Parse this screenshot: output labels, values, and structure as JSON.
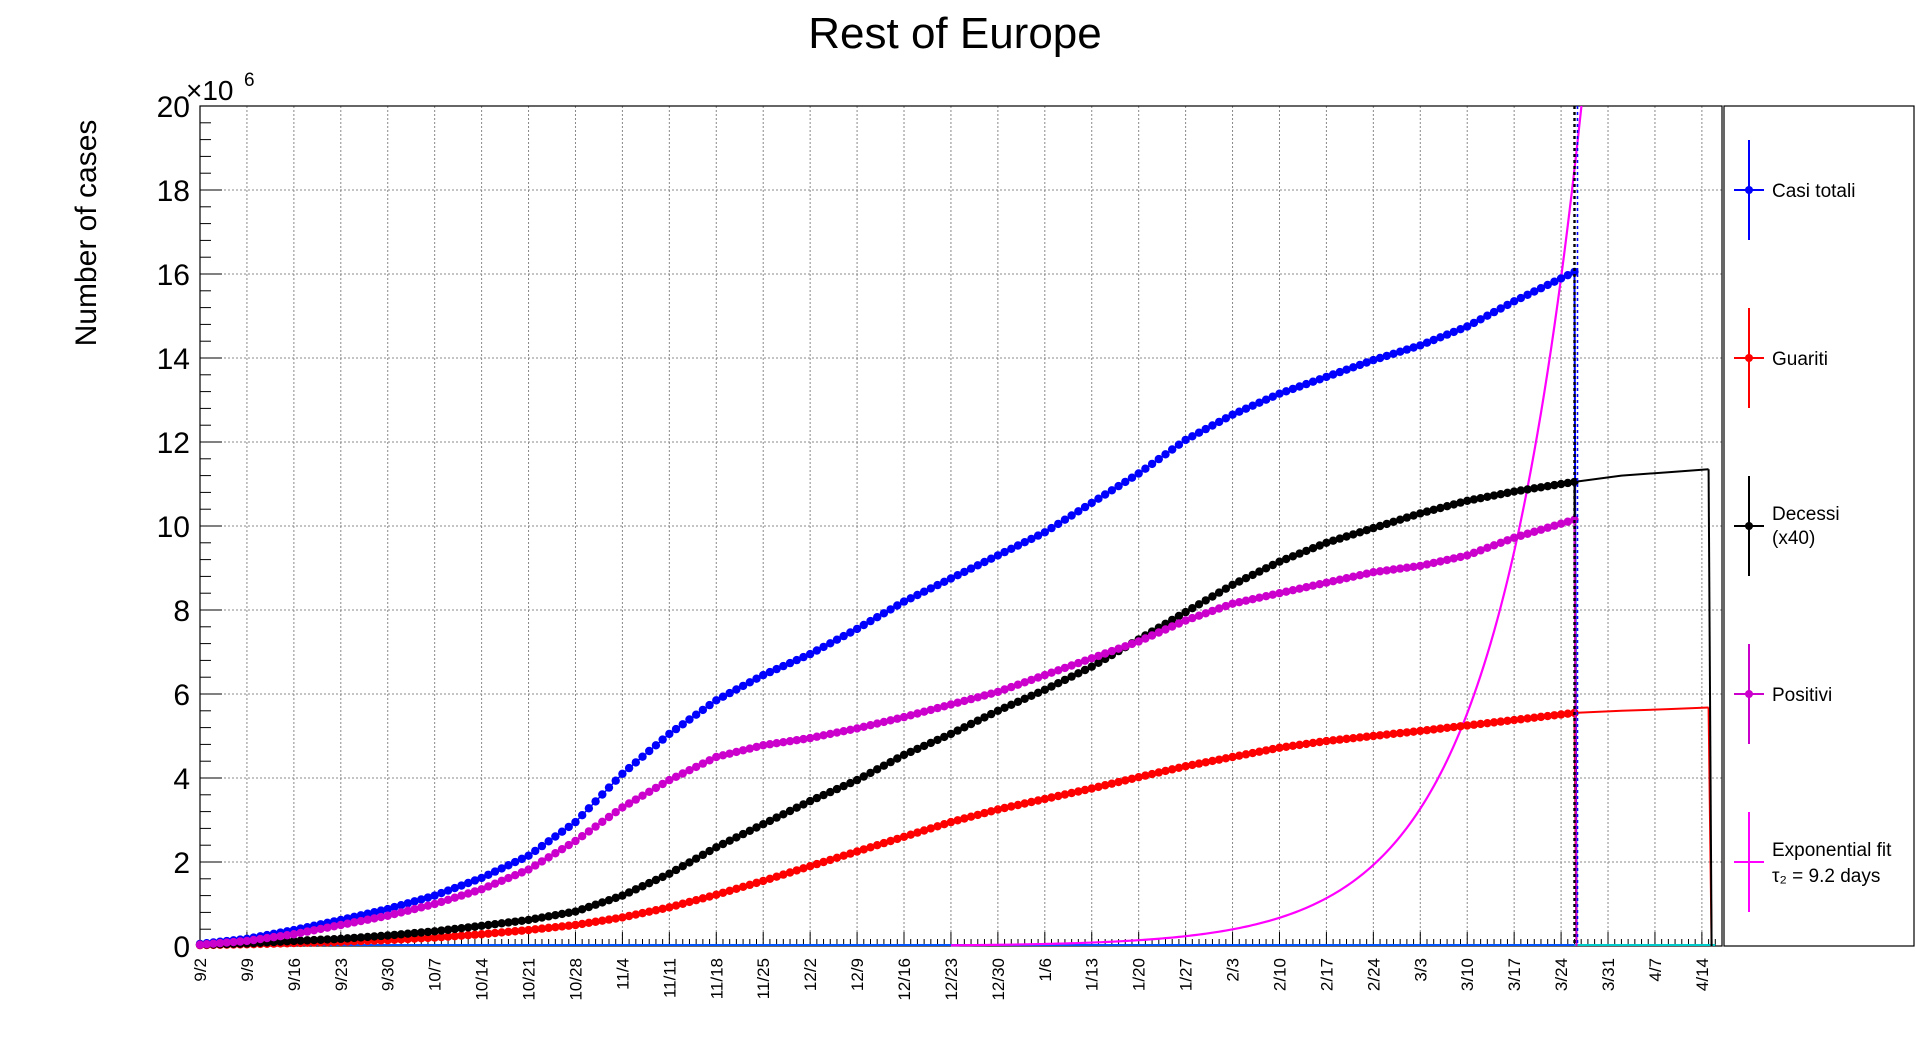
{
  "chart_data": {
    "type": "line",
    "title": "Rest of Europe",
    "ylabel": "Number of cases",
    "xlabel": "",
    "y_multiplier": "×10",
    "y_multiplier_exp": "6",
    "ylim": [
      0,
      20
    ],
    "yticks": [
      "0",
      "2",
      "4",
      "6",
      "8",
      "10",
      "12",
      "14",
      "16",
      "18",
      "20"
    ],
    "grid": true,
    "legend_position": "right",
    "x_tick_labels": [
      "9/2",
      "9/9",
      "9/16",
      "9/23",
      "9/30",
      "10/7",
      "10/14",
      "10/21",
      "10/28",
      "11/4",
      "11/11",
      "11/18",
      "11/25",
      "12/2",
      "12/9",
      "12/16",
      "12/23",
      "12/30",
      "1/6",
      "1/13",
      "1/20",
      "1/27",
      "2/3",
      "2/10",
      "2/17",
      "2/24",
      "3/3",
      "3/10",
      "3/17",
      "3/24",
      "3/31",
      "4/7",
      "4/14"
    ],
    "x_range_days": [
      0,
      227
    ],
    "last_data_day": 205,
    "forecast_end_day": 226,
    "vertical_marker_day": 205,
    "series": [
      {
        "name": "Casi totali",
        "color": "#0000ff",
        "points": [
          [
            0,
            0.05
          ],
          [
            7,
            0.17
          ],
          [
            14,
            0.38
          ],
          [
            21,
            0.62
          ],
          [
            28,
            0.88
          ],
          [
            35,
            1.2
          ],
          [
            42,
            1.62
          ],
          [
            49,
            2.15
          ],
          [
            56,
            2.95
          ],
          [
            63,
            4.1
          ],
          [
            70,
            5.05
          ],
          [
            77,
            5.85
          ],
          [
            84,
            6.45
          ],
          [
            91,
            6.95
          ],
          [
            98,
            7.55
          ],
          [
            105,
            8.2
          ],
          [
            112,
            8.75
          ],
          [
            119,
            9.3
          ],
          [
            126,
            9.85
          ],
          [
            133,
            10.55
          ],
          [
            140,
            11.25
          ],
          [
            147,
            12.05
          ],
          [
            154,
            12.65
          ],
          [
            161,
            13.15
          ],
          [
            168,
            13.55
          ],
          [
            175,
            13.95
          ],
          [
            182,
            14.3
          ],
          [
            189,
            14.75
          ],
          [
            196,
            15.35
          ],
          [
            205,
            16.05
          ]
        ]
      },
      {
        "name": "Guariti",
        "color": "#ff0000",
        "points": [
          [
            0,
            0.02
          ],
          [
            7,
            0.04
          ],
          [
            14,
            0.07
          ],
          [
            21,
            0.1
          ],
          [
            28,
            0.14
          ],
          [
            35,
            0.2
          ],
          [
            42,
            0.28
          ],
          [
            49,
            0.38
          ],
          [
            56,
            0.5
          ],
          [
            63,
            0.68
          ],
          [
            70,
            0.92
          ],
          [
            77,
            1.22
          ],
          [
            84,
            1.55
          ],
          [
            91,
            1.9
          ],
          [
            98,
            2.25
          ],
          [
            105,
            2.6
          ],
          [
            112,
            2.95
          ],
          [
            119,
            3.25
          ],
          [
            126,
            3.5
          ],
          [
            133,
            3.75
          ],
          [
            140,
            4.02
          ],
          [
            147,
            4.28
          ],
          [
            154,
            4.5
          ],
          [
            161,
            4.72
          ],
          [
            168,
            4.88
          ],
          [
            175,
            5.0
          ],
          [
            182,
            5.12
          ],
          [
            189,
            5.25
          ],
          [
            196,
            5.38
          ],
          [
            205,
            5.55
          ]
        ],
        "forecast": [
          [
            205,
            5.55
          ],
          [
            212,
            5.6
          ],
          [
            219,
            5.64
          ],
          [
            225,
            5.68
          ]
        ]
      },
      {
        "name": "Decessi (x40)",
        "color": "#000000",
        "points": [
          [
            0,
            0.03
          ],
          [
            7,
            0.06
          ],
          [
            14,
            0.12
          ],
          [
            21,
            0.17
          ],
          [
            28,
            0.25
          ],
          [
            35,
            0.35
          ],
          [
            42,
            0.48
          ],
          [
            49,
            0.62
          ],
          [
            56,
            0.82
          ],
          [
            63,
            1.2
          ],
          [
            70,
            1.72
          ],
          [
            77,
            2.35
          ],
          [
            84,
            2.9
          ],
          [
            91,
            3.45
          ],
          [
            98,
            3.95
          ],
          [
            105,
            4.55
          ],
          [
            112,
            5.05
          ],
          [
            119,
            5.6
          ],
          [
            126,
            6.1
          ],
          [
            133,
            6.65
          ],
          [
            140,
            7.3
          ],
          [
            147,
            7.95
          ],
          [
            154,
            8.6
          ],
          [
            161,
            9.15
          ],
          [
            168,
            9.6
          ],
          [
            175,
            9.95
          ],
          [
            182,
            10.3
          ],
          [
            189,
            10.6
          ],
          [
            196,
            10.82
          ],
          [
            205,
            11.05
          ]
        ],
        "forecast": [
          [
            205,
            11.05
          ],
          [
            212,
            11.2
          ],
          [
            219,
            11.28
          ],
          [
            225,
            11.35
          ]
        ]
      },
      {
        "name": "Positivi",
        "color": "#cc00cc",
        "points": [
          [
            0,
            0.03
          ],
          [
            7,
            0.12
          ],
          [
            14,
            0.28
          ],
          [
            21,
            0.5
          ],
          [
            28,
            0.72
          ],
          [
            35,
            1.0
          ],
          [
            42,
            1.35
          ],
          [
            49,
            1.82
          ],
          [
            56,
            2.5
          ],
          [
            63,
            3.3
          ],
          [
            70,
            3.95
          ],
          [
            77,
            4.5
          ],
          [
            84,
            4.78
          ],
          [
            91,
            4.95
          ],
          [
            98,
            5.18
          ],
          [
            105,
            5.45
          ],
          [
            112,
            5.75
          ],
          [
            119,
            6.05
          ],
          [
            126,
            6.45
          ],
          [
            133,
            6.85
          ],
          [
            140,
            7.25
          ],
          [
            147,
            7.75
          ],
          [
            154,
            8.15
          ],
          [
            161,
            8.4
          ],
          [
            168,
            8.65
          ],
          [
            175,
            8.9
          ],
          [
            182,
            9.05
          ],
          [
            189,
            9.3
          ],
          [
            196,
            9.72
          ],
          [
            205,
            10.15
          ]
        ]
      },
      {
        "name": "Exponential fit",
        "label_sub": "τ₂ = 9.2 days",
        "color": "#ff00ff",
        "doubling_days": 9.2,
        "anchor": [
          205,
          18.5
        ],
        "start_day": 112
      }
    ],
    "baseline_colors": [
      "#0055ff",
      "#00cccc"
    ]
  }
}
